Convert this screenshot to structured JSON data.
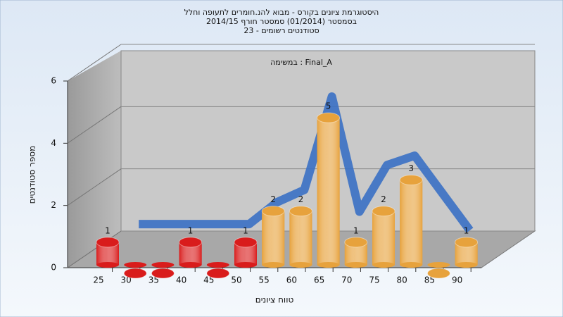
{
  "chart_data": {
    "type": "bar3d",
    "title": "היסטוגרמת ציונים בקורס - מבוא להנ.חומרים לתעופה וחלל",
    "subtitle": "בסמסטר  (01/2014)  סמסטר חורף 2014/15",
    "subtitle2": "סטודנטים רשומים - 23",
    "annotation": "במשימה : Final_A",
    "x_label": "טווח ציונים",
    "y_label": "מספר סטודנטים",
    "categories": [
      "25",
      "30",
      "35",
      "40",
      "45",
      "50",
      "55",
      "60",
      "65",
      "70",
      "75",
      "80",
      "85",
      "90"
    ],
    "values": [
      1,
      0,
      0,
      1,
      0,
      1,
      2,
      2,
      5,
      1,
      2,
      3,
      0,
      1
    ],
    "colors": [
      "#d91c1c",
      "#d91c1c",
      "#d91c1c",
      "#d91c1c",
      "#d91c1c",
      "#d91c1c",
      "#e7a23c",
      "#e7a23c",
      "#e7a23c",
      "#e7a23c",
      "#e7a23c",
      "#e7a23c",
      "#e7a23c",
      "#e7a23c"
    ],
    "curve": {
      "color": "#3a70c4",
      "values": [
        null,
        1.4,
        1.4,
        1.4,
        1.4,
        1.4,
        2.1,
        2.5,
        5.5,
        1.8,
        3.3,
        3.6,
        2.4,
        1.2
      ]
    },
    "ylim": [
      0,
      6
    ],
    "yticks": [
      0,
      2,
      4,
      6
    ],
    "grid": true
  }
}
